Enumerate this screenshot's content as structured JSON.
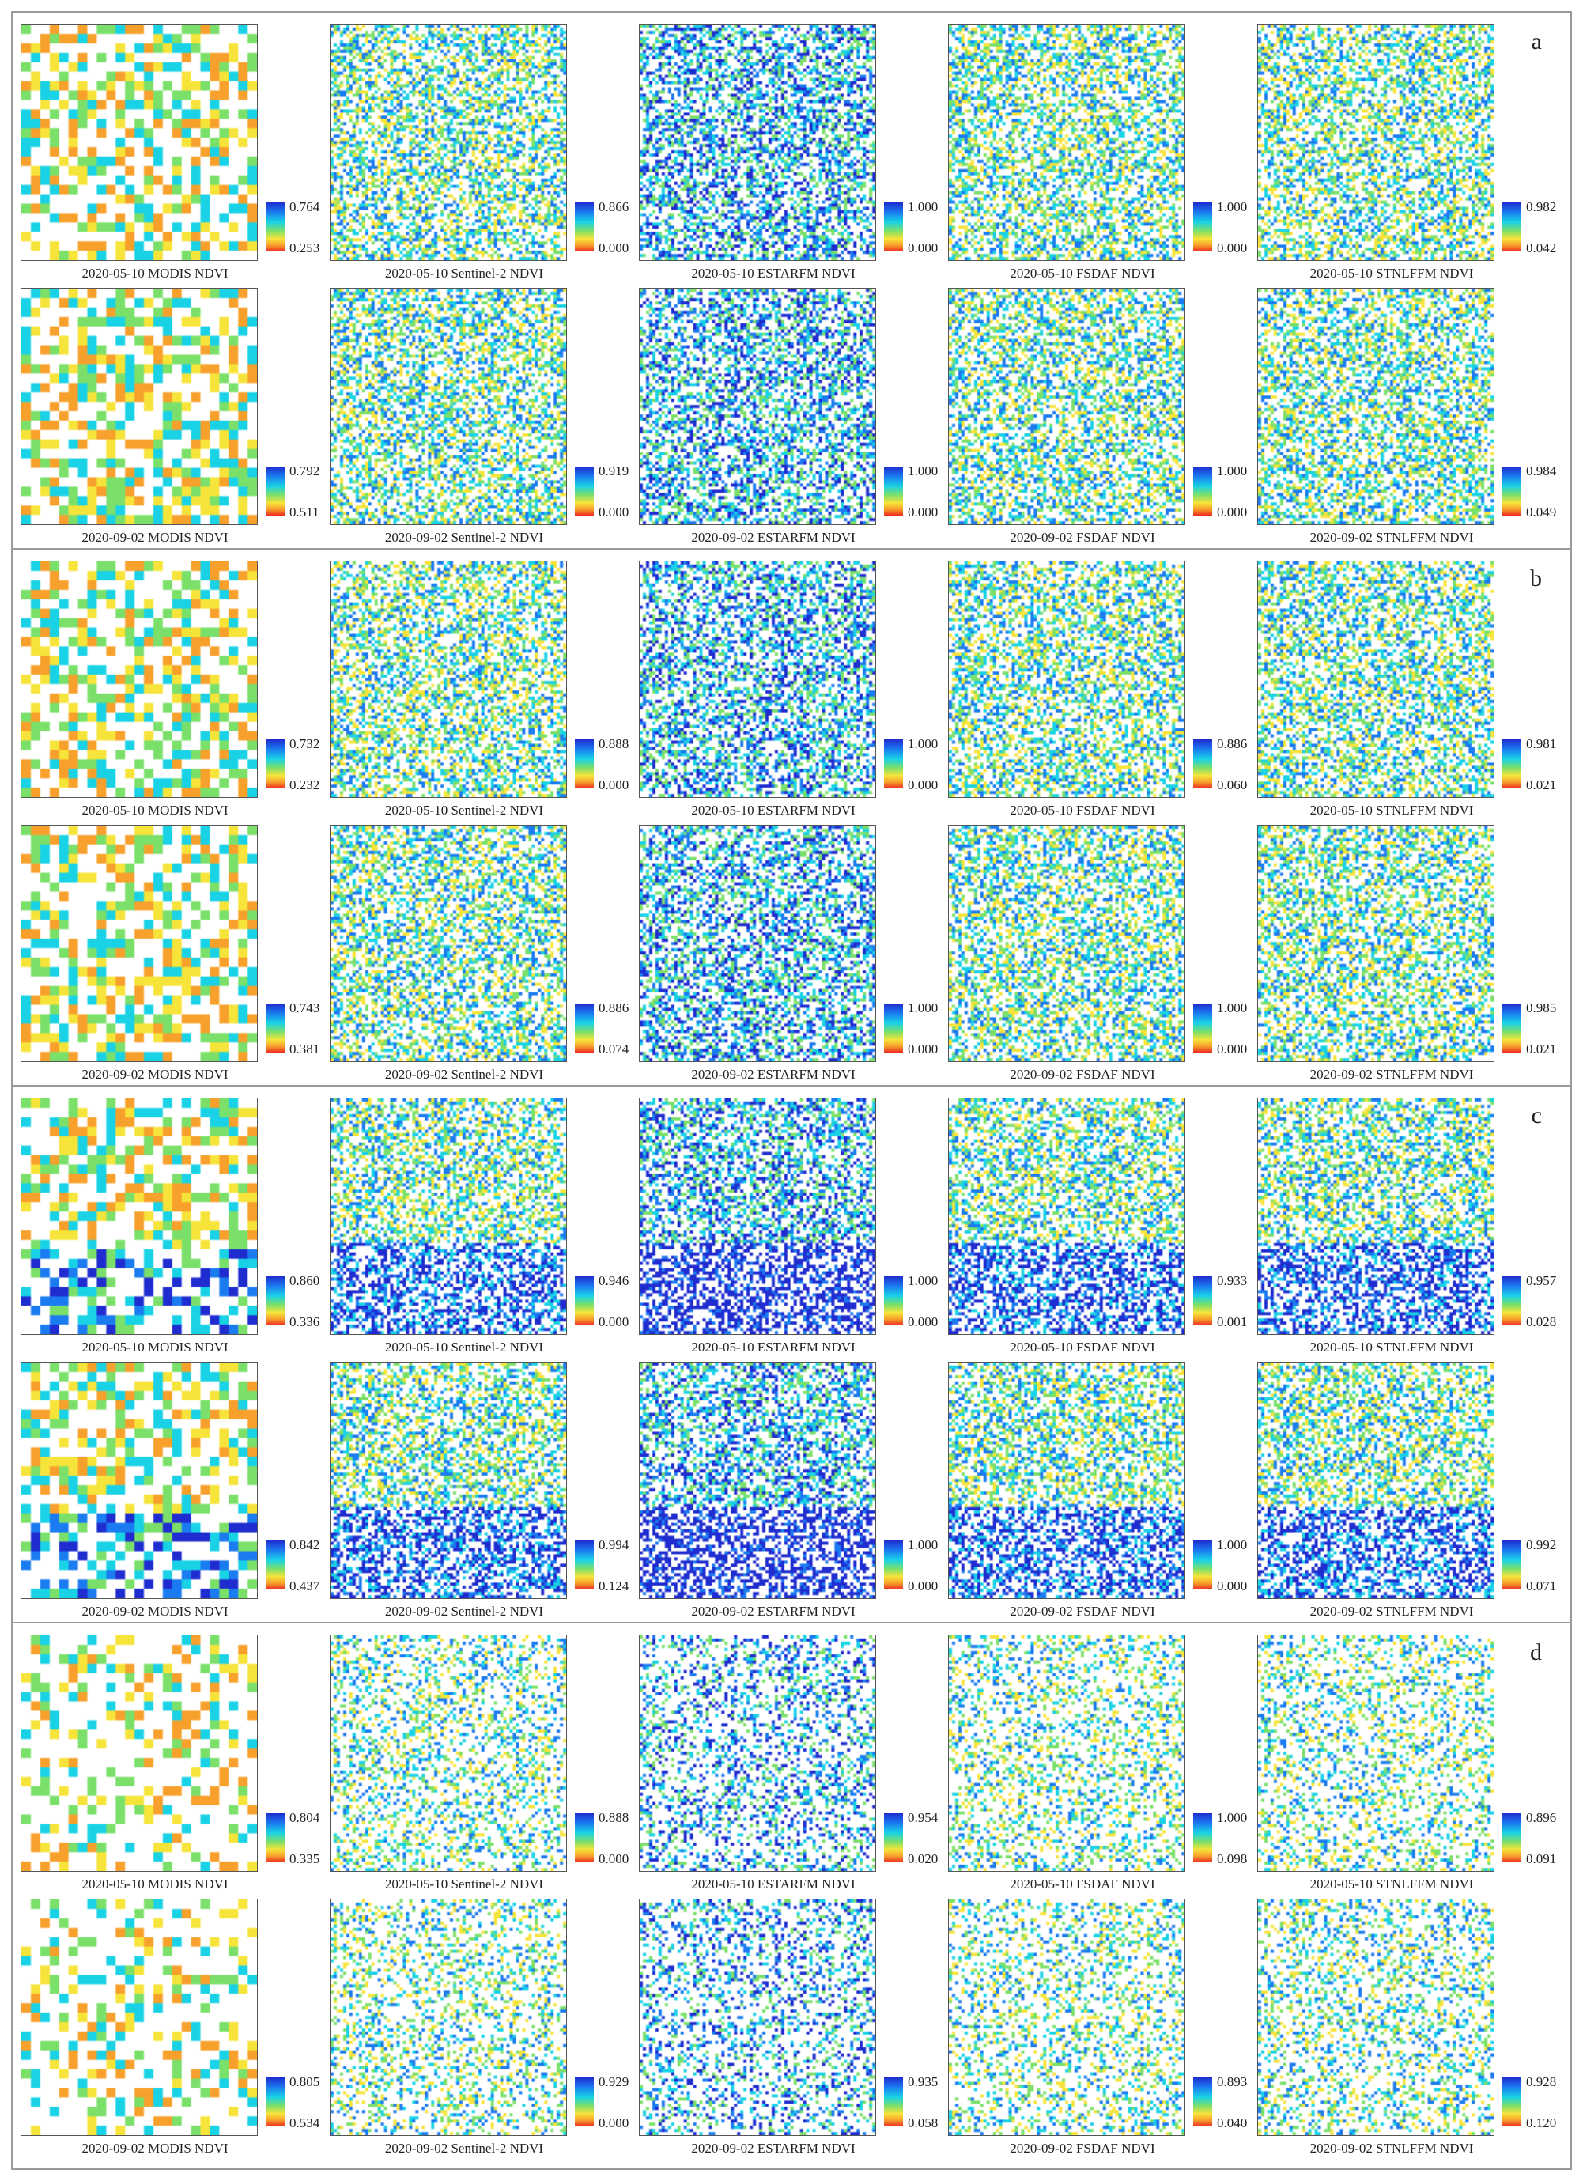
{
  "colormap": [
    "#1f2ccf",
    "#1b7bf0",
    "#19d2e6",
    "#7be06a",
    "#f7e43a",
    "#f7a12c",
    "#ef2a20"
  ],
  "sections": [
    {
      "letter": "a",
      "rows": [
        [
          {
            "caption": "2020-05-10 MODIS NDVI",
            "max": "0.764",
            "min": "0.253"
          },
          {
            "caption": "2020-05-10 Sentinel-2 NDVI",
            "max": "0.866",
            "min": "0.000"
          },
          {
            "caption": "2020-05-10 ESTARFM NDVI",
            "max": "1.000",
            "min": "0.000"
          },
          {
            "caption": "2020-05-10 FSDAF NDVI",
            "max": "1.000",
            "min": "0.000"
          },
          {
            "caption": "2020-05-10 STNLFFM NDVI",
            "max": "0.982",
            "min": "0.042"
          }
        ],
        [
          {
            "caption": "2020-09-02 MODIS NDVI",
            "max": "0.792",
            "min": "0.511"
          },
          {
            "caption": "2020-09-02 Sentinel-2 NDVI",
            "max": "0.919",
            "min": "0.000"
          },
          {
            "caption": "2020-09-02 ESTARFM NDVI",
            "max": "1.000",
            "min": "0.000"
          },
          {
            "caption": "2020-09-02 FSDAF NDVI",
            "max": "1.000",
            "min": "0.000"
          },
          {
            "caption": "2020-09-02 STNLFFM NDVI",
            "max": "0.984",
            "min": "0.049"
          }
        ]
      ]
    },
    {
      "letter": "b",
      "rows": [
        [
          {
            "caption": "2020-05-10 MODIS NDVI",
            "max": "0.732",
            "min": "0.232"
          },
          {
            "caption": "2020-05-10 Sentinel-2 NDVI",
            "max": "0.888",
            "min": "0.000"
          },
          {
            "caption": "2020-05-10 ESTARFM NDVI",
            "max": "1.000",
            "min": "0.000"
          },
          {
            "caption": "2020-05-10 FSDAF NDVI",
            "max": "0.886",
            "min": "0.060"
          },
          {
            "caption": "2020-05-10 STNLFFM NDVI",
            "max": "0.981",
            "min": "0.021"
          }
        ],
        [
          {
            "caption": "2020-09-02 MODIS NDVI",
            "max": "0.743",
            "min": "0.381"
          },
          {
            "caption": "2020-09-02 Sentinel-2 NDVI",
            "max": "0.886",
            "min": "0.074"
          },
          {
            "caption": "2020-09-02 ESTARFM NDVI",
            "max": "1.000",
            "min": "0.000"
          },
          {
            "caption": "2020-09-02 FSDAF NDVI",
            "max": "1.000",
            "min": "0.000"
          },
          {
            "caption": "2020-09-02 STNLFFM NDVI",
            "max": "0.985",
            "min": "0.021"
          }
        ]
      ]
    },
    {
      "letter": "c",
      "rows": [
        [
          {
            "caption": "2020-05-10 MODIS NDVI",
            "max": "0.860",
            "min": "0.336"
          },
          {
            "caption": "2020-05-10 Sentinel-2 NDVI",
            "max": "0.946",
            "min": "0.000"
          },
          {
            "caption": "2020-05-10 ESTARFM NDVI",
            "max": "1.000",
            "min": "0.000"
          },
          {
            "caption": "2020-05-10 FSDAF NDVI",
            "max": "0.933",
            "min": "0.001"
          },
          {
            "caption": "2020-05-10 STNLFFM NDVI",
            "max": "0.957",
            "min": "0.028"
          }
        ],
        [
          {
            "caption": "2020-09-02 MODIS NDVI",
            "max": "0.842",
            "min": "0.437"
          },
          {
            "caption": "2020-09-02 Sentinel-2 NDVI",
            "max": "0.994",
            "min": "0.124"
          },
          {
            "caption": "2020-09-02 ESTARFM NDVI",
            "max": "1.000",
            "min": "0.000"
          },
          {
            "caption": "2020-09-02 FSDAF NDVI",
            "max": "1.000",
            "min": "0.000"
          },
          {
            "caption": "2020-09-02 STNLFFM NDVI",
            "max": "0.992",
            "min": "0.071"
          }
        ]
      ]
    },
    {
      "letter": "d",
      "rows": [
        [
          {
            "caption": "2020-05-10 MODIS NDVI",
            "max": "0.804",
            "min": "0.335"
          },
          {
            "caption": "2020-05-10 Sentinel-2 NDVI",
            "max": "0.888",
            "min": "0.000"
          },
          {
            "caption": "2020-05-10 ESTARFM NDVI",
            "max": "0.954",
            "min": "0.020"
          },
          {
            "caption": "2020-05-10 FSDAF NDVI",
            "max": "1.000",
            "min": "0.098"
          },
          {
            "caption": "2020-05-10 STNLFFM NDVI",
            "max": "0.896",
            "min": "0.091"
          }
        ],
        [
          {
            "caption": "2020-09-02 MODIS NDVI",
            "max": "0.805",
            "min": "0.534"
          },
          {
            "caption": "2020-09-02 Sentinel-2 NDVI",
            "max": "0.929",
            "min": "0.000"
          },
          {
            "caption": "2020-09-02 ESTARFM NDVI",
            "max": "0.935",
            "min": "0.058"
          },
          {
            "caption": "2020-09-02 FSDAF NDVI",
            "max": "0.893",
            "min": "0.040"
          },
          {
            "caption": "2020-09-02 STNLFFM NDVI",
            "max": "0.928",
            "min": "0.120"
          }
        ]
      ]
    }
  ]
}
